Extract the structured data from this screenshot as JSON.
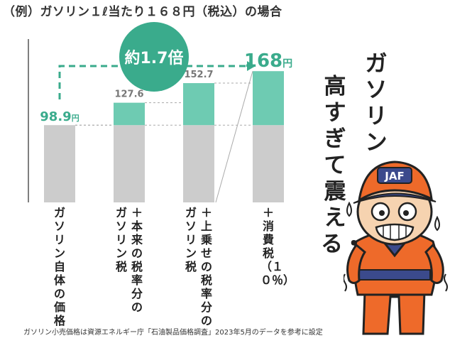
{
  "title": "（例）ガソリン１ℓ当たり１６８円（税込）の場合",
  "vertical_title": [
    "ガソリン",
    "高すぎて震える・・。"
  ],
  "mascot": {
    "cap_text": "JAF"
  },
  "footnote": "ガソリン小売価格は資源エネルギー庁「石油製品価格調査」2023年5月のデータを参考に設定",
  "colors": {
    "base": "#cccccc",
    "tax": "#6ecbb2",
    "accent": "#3aab8c",
    "arrow": "#3aab8c",
    "label_gray": "#777777"
  },
  "chart_data": {
    "type": "bar",
    "stacked": true,
    "categories": [
      "ガソリン自体の価格",
      "＋本来の税率分のガソリン税",
      "＋上乗せの税率分のガソリン税",
      "＋消費税（１０％）"
    ],
    "category_lines": [
      [
        "ガソリン自体の価格"
      ],
      [
        "＋本来の税率分の",
        "ガソリン税"
      ],
      [
        "＋上乗せの税率分の",
        "ガソリン税"
      ],
      [
        "＋消費税（１０％）"
      ]
    ],
    "series": [
      {
        "values": [
          98.9,
          98.9,
          98.9,
          98.9
        ]
      },
      {
        "values": [
          0,
          28.7,
          53.8,
          69.1
        ]
      }
    ],
    "totals": [
      98.9,
      127.6,
      152.7,
      168
    ],
    "total_labels": [
      {
        "value": "98.9",
        "unit": "円"
      },
      {
        "value": "127.6",
        "unit": ""
      },
      {
        "value": "152.7",
        "unit": ""
      },
      {
        "value": "168",
        "unit": "円"
      }
    ],
    "annotation": "約1.7倍",
    "ylim": [
      0,
      180
    ]
  }
}
